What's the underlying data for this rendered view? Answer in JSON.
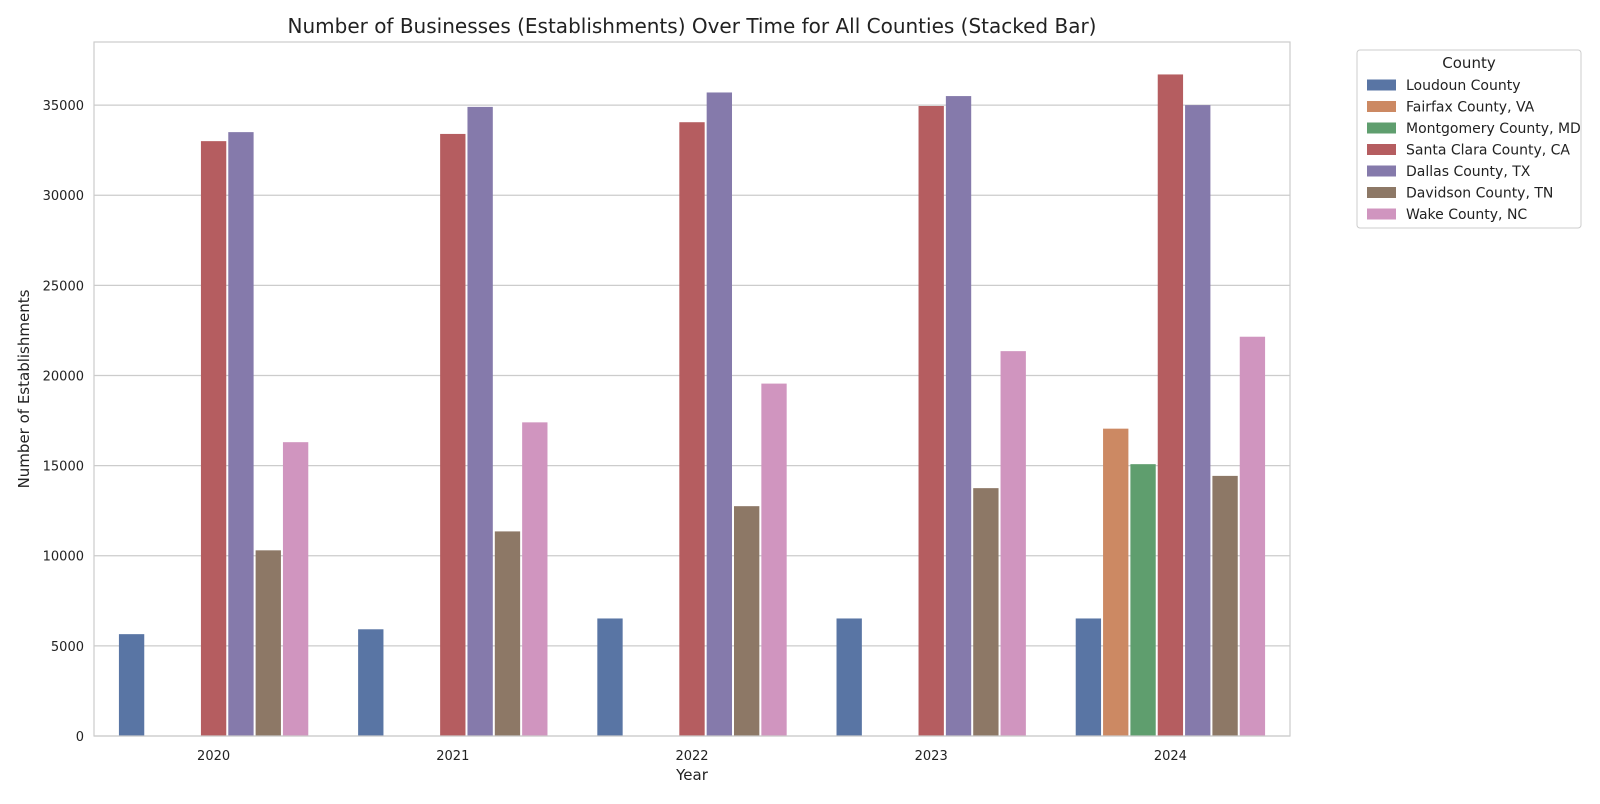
{
  "chart_data": {
    "type": "bar",
    "title": "Number of Businesses (Establishments) Over Time for All Counties (Stacked Bar)",
    "xlabel": "Year",
    "ylabel": "Number of Establishments",
    "categories": [
      "2020",
      "2021",
      "2022",
      "2023",
      "2024"
    ],
    "ylim": [
      0,
      38500
    ],
    "yticks": [
      0,
      5000,
      10000,
      15000,
      20000,
      25000,
      30000,
      35000
    ],
    "grid": true,
    "legend": {
      "title": "County",
      "placement": "outside top-right"
    },
    "series": [
      {
        "name": "Loudoun County",
        "color": "#5975a4",
        "values": [
          5650,
          5920,
          6520,
          6520,
          6520
        ]
      },
      {
        "name": "Fairfax County, VA",
        "color": "#cc8963",
        "values": [
          0,
          0,
          0,
          0,
          17050
        ]
      },
      {
        "name": "Montgomery County, MD",
        "color": "#5f9e6e",
        "values": [
          0,
          0,
          0,
          0,
          15080
        ]
      },
      {
        "name": "Santa Clara County, CA",
        "color": "#b55d60",
        "values": [
          33000,
          33400,
          34050,
          34950,
          36700
        ]
      },
      {
        "name": "Dallas County, TX",
        "color": "#857aab",
        "values": [
          33500,
          34900,
          35700,
          35500,
          35000
        ]
      },
      {
        "name": "Davidson County, TN",
        "color": "#8d7866",
        "values": [
          10300,
          11350,
          12750,
          13750,
          14430
        ]
      },
      {
        "name": "Wake County, NC",
        "color": "#d095bf",
        "values": [
          16300,
          17400,
          19550,
          21350,
          22150
        ]
      }
    ]
  }
}
